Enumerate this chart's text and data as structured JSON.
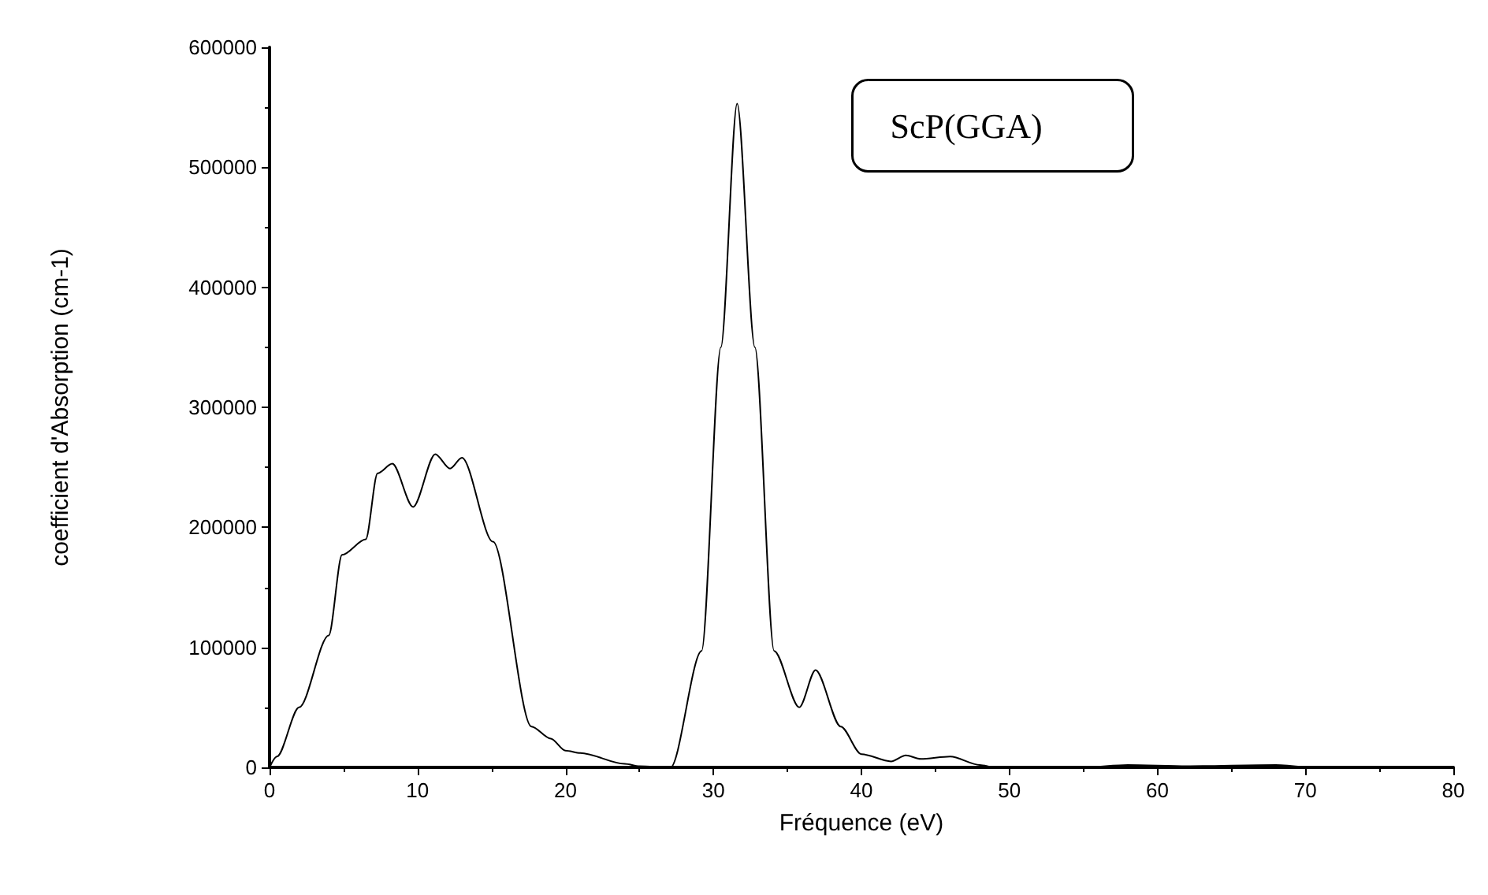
{
  "chart_data": {
    "type": "line",
    "xlabel": "Fréquence (eV)",
    "ylabel": "coefficient d'Absorption (cm-1)",
    "annotations": [
      "ScP(GGA)"
    ],
    "x": [
      0,
      0.5,
      2,
      4,
      4.9,
      6.5,
      7.3,
      8.3,
      9.7,
      11.2,
      12.2,
      13.0,
      15.1,
      17.7,
      19.0,
      20,
      21,
      24,
      25,
      27.1,
      29.2,
      30.5,
      31.6,
      32.8,
      34.1,
      35.8,
      36.9,
      38.6,
      40,
      42,
      43,
      44,
      46,
      48,
      49,
      55,
      58,
      62,
      68,
      70
    ],
    "series": [
      {
        "color": "#000000",
        "values": [
          0,
          9000,
          50000,
          110000,
          177000,
          190000,
          245000,
          253000,
          217000,
          261000,
          249000,
          258000,
          188000,
          34000,
          24000,
          14000,
          12000,
          3000,
          1000,
          0,
          97000,
          350000,
          553000,
          350000,
          97000,
          50000,
          81000,
          34000,
          11000,
          5000,
          10000,
          7000,
          9000,
          2000,
          0,
          0,
          2000,
          1000,
          2000,
          0
        ]
      }
    ],
    "xlim": [
      0,
      80
    ],
    "xticks": [
      0,
      10,
      20,
      30,
      40,
      50,
      60,
      70,
      80
    ],
    "ylim": [
      0,
      600000
    ],
    "yticks": [
      0,
      100000,
      200000,
      300000,
      400000,
      500000,
      600000
    ],
    "grid": false,
    "marker": "none",
    "line_style": "solid"
  }
}
